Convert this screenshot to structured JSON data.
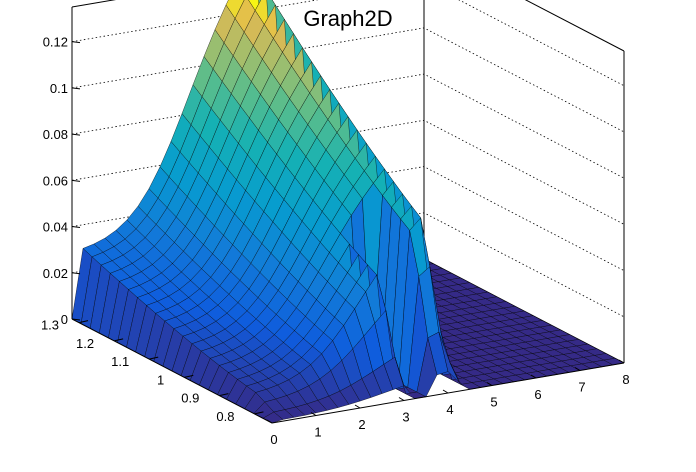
{
  "chart_data": {
    "type": "surface",
    "title": "Graph2D",
    "xlabel": "",
    "ylabel": "",
    "zlabel": "",
    "x_ticks": [
      "0",
      "1",
      "2",
      "3",
      "4",
      "5",
      "6",
      "7",
      "8"
    ],
    "y_ticks": [
      "0.8",
      "0.9",
      "1",
      "1.1",
      "1.2",
      "1.3"
    ],
    "z_ticks": [
      "0",
      "0.02",
      "0.04",
      "0.06",
      "0.08",
      "0.1",
      "0.12"
    ],
    "xlim": [
      0,
      8
    ],
    "ylim": [
      0.75,
      1.32
    ],
    "zlim": [
      0,
      0.135
    ],
    "grid": true,
    "colormap": "parula",
    "surface_summary": {
      "x_grid": [
        0,
        1,
        2,
        3,
        4,
        5,
        6,
        7,
        8
      ],
      "y_grid": [
        0.75,
        0.85,
        0.95,
        1.05,
        1.15,
        1.25,
        1.32
      ],
      "z": [
        [
          0,
          0,
          0,
          0,
          0,
          0,
          0,
          0,
          0
        ],
        [
          0,
          0,
          0,
          0.028,
          0.02,
          0,
          0,
          0,
          0
        ],
        [
          0.004,
          0.01,
          0.022,
          0.065,
          0.075,
          0,
          0,
          0,
          0
        ],
        [
          0.01,
          0.018,
          0.032,
          0.072,
          0.105,
          0,
          0,
          0,
          0
        ],
        [
          0.014,
          0.02,
          0.035,
          0.055,
          0.09,
          0,
          0,
          0,
          0
        ],
        [
          0.018,
          0.03,
          0.048,
          0.078,
          0.128,
          0,
          0,
          0,
          0
        ],
        [
          0.022,
          0.04,
          0.06,
          0.085,
          0.13,
          0,
          0,
          0,
          0
        ]
      ]
    }
  }
}
